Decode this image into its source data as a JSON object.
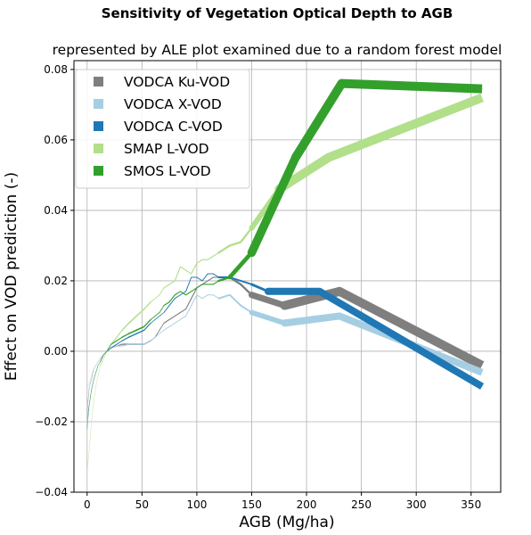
{
  "chart_data": {
    "type": "line",
    "title": "Sensitivity of Vegetation Optical Depth to AGB",
    "subtitle": "represented by ALE plot examined due to a random forest model",
    "xlabel": "AGB (Mg/ha)",
    "ylabel": "Effect on VOD prediction (-)",
    "xlim": [
      -12,
      377
    ],
    "ylim": [
      -0.04,
      0.0825
    ],
    "xticks": [
      0,
      50,
      100,
      150,
      200,
      250,
      300,
      350
    ],
    "yticks": [
      -0.04,
      -0.02,
      0.0,
      0.02,
      0.04,
      0.06,
      0.08
    ],
    "xtick_labels": [
      "0",
      "50",
      "100",
      "150",
      "200",
      "250",
      "300",
      "350"
    ],
    "ytick_labels": [
      "−0.04",
      "−0.02",
      "0.00",
      "0.02",
      "0.04",
      "0.06",
      "0.08"
    ],
    "grid": true,
    "legend_position": "top-left",
    "series": [
      {
        "name": "VODCA Ku-VOD",
        "color": "#7f7f7f",
        "weight": [
          0.4,
          10
        ],
        "x": [
          0,
          2,
          4,
          6,
          8,
          10,
          12,
          15,
          18,
          22,
          27,
          32,
          38,
          45,
          52,
          58,
          62,
          66,
          70,
          75,
          80,
          85,
          90,
          95,
          100,
          105,
          110,
          115,
          120,
          130,
          140,
          150,
          180,
          230,
          360
        ],
        "y": [
          -0.017,
          -0.01,
          -0.008,
          -0.005,
          -0.004,
          -0.003,
          -0.002,
          -0.001,
          0.0,
          0.001,
          0.0015,
          0.002,
          0.002,
          0.002,
          0.002,
          0.003,
          0.004,
          0.006,
          0.008,
          0.009,
          0.01,
          0.011,
          0.012,
          0.015,
          0.018,
          0.019,
          0.02,
          0.021,
          0.021,
          0.021,
          0.019,
          0.016,
          0.013,
          0.017,
          -0.004
        ]
      },
      {
        "name": "VODCA X-VOD",
        "color": "#a6cee3",
        "weight": [
          0.4,
          8
        ],
        "x": [
          0,
          2,
          4,
          6,
          8,
          10,
          12,
          15,
          18,
          22,
          27,
          32,
          38,
          45,
          52,
          58,
          62,
          66,
          70,
          75,
          80,
          85,
          90,
          95,
          100,
          105,
          110,
          115,
          120,
          130,
          140,
          150,
          180,
          230,
          360
        ],
        "y": [
          -0.01,
          -0.009,
          -0.007,
          -0.005,
          -0.004,
          -0.003,
          -0.002,
          -0.001,
          0.0,
          0.001,
          0.0015,
          0.0015,
          0.002,
          0.002,
          0.002,
          0.003,
          0.004,
          0.005,
          0.006,
          0.007,
          0.008,
          0.009,
          0.01,
          0.013,
          0.016,
          0.015,
          0.016,
          0.016,
          0.015,
          0.016,
          0.013,
          0.011,
          0.008,
          0.01,
          -0.006
        ]
      },
      {
        "name": "VODCA C-VOD",
        "color": "#1f78b4",
        "weight": [
          0.4,
          8
        ],
        "x": [
          0,
          2,
          4,
          6,
          8,
          10,
          12,
          15,
          18,
          22,
          27,
          32,
          38,
          45,
          52,
          58,
          62,
          66,
          70,
          75,
          80,
          85,
          90,
          95,
          100,
          105,
          110,
          115,
          120,
          130,
          140,
          150,
          165,
          212,
          360
        ],
        "y": [
          -0.022,
          -0.015,
          -0.011,
          -0.008,
          -0.006,
          -0.004,
          -0.003,
          -0.001,
          0.0,
          0.001,
          0.002,
          0.003,
          0.004,
          0.005,
          0.006,
          0.008,
          0.009,
          0.01,
          0.011,
          0.013,
          0.015,
          0.016,
          0.017,
          0.021,
          0.021,
          0.02,
          0.022,
          0.022,
          0.021,
          0.021,
          0.02,
          0.019,
          0.017,
          0.017,
          -0.01
        ]
      },
      {
        "name": "SMAP L-VOD",
        "color": "#b2df8a",
        "weight": [
          0.4,
          10
        ],
        "x": [
          0,
          2,
          4,
          6,
          8,
          10,
          12,
          15,
          18,
          22,
          27,
          32,
          38,
          45,
          52,
          58,
          62,
          66,
          70,
          75,
          80,
          85,
          90,
          95,
          100,
          105,
          110,
          115,
          120,
          130,
          140,
          150,
          175,
          220,
          360
        ],
        "y": [
          -0.034,
          -0.028,
          -0.02,
          -0.014,
          -0.01,
          -0.007,
          -0.004,
          -0.002,
          0.0,
          0.002,
          0.004,
          0.006,
          0.008,
          0.01,
          0.012,
          0.014,
          0.015,
          0.016,
          0.018,
          0.019,
          0.02,
          0.024,
          0.023,
          0.022,
          0.025,
          0.026,
          0.026,
          0.027,
          0.028,
          0.03,
          0.031,
          0.035,
          0.046,
          0.055,
          0.072
        ]
      },
      {
        "name": "SMOS L-VOD",
        "color": "#33a02c",
        "weight": [
          0.4,
          10
        ],
        "x": [
          0,
          2,
          4,
          6,
          8,
          10,
          12,
          15,
          18,
          22,
          27,
          32,
          38,
          45,
          52,
          58,
          62,
          66,
          70,
          75,
          80,
          85,
          90,
          95,
          100,
          105,
          110,
          115,
          120,
          130,
          150,
          190,
          232,
          360
        ],
        "y": [
          -0.019,
          -0.015,
          -0.011,
          -0.008,
          -0.006,
          -0.004,
          -0.003,
          -0.001,
          0.0,
          0.002,
          0.003,
          0.004,
          0.005,
          0.006,
          0.007,
          0.009,
          0.01,
          0.011,
          0.013,
          0.014,
          0.016,
          0.017,
          0.016,
          0.017,
          0.018,
          0.019,
          0.019,
          0.019,
          0.02,
          0.021,
          0.028,
          0.055,
          0.076,
          0.0745
        ]
      }
    ]
  }
}
